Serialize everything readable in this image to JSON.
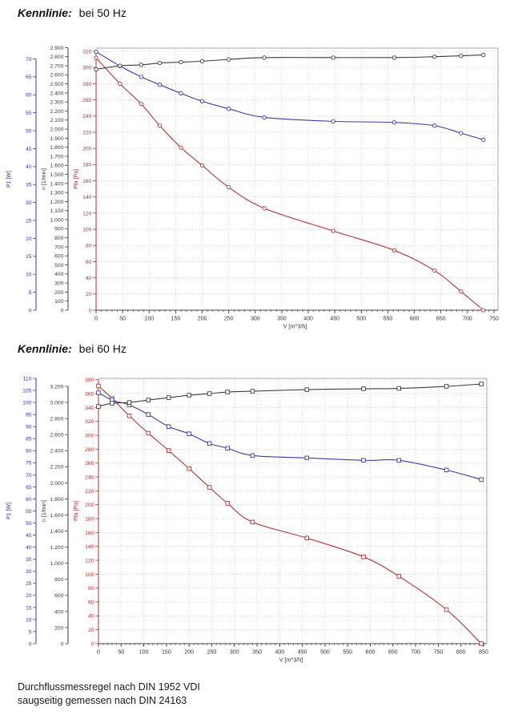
{
  "footer": {
    "lines": [
      "Durchflussmessregel nach DIN 1952 VDI",
      "saugseitig gemessen nach DIN 24163"
    ]
  },
  "colors": {
    "p1_blue": "#3a3aae",
    "n_black": "#3c3c3c",
    "pfa_red": "#b43232",
    "grid_vertical": "#cfcfcf",
    "grid_horizontal": "#dcc0c0",
    "plot_border": "#a8a8a8",
    "x_axis_line": "#444444",
    "x_tick_text": "#333333"
  },
  "chart_data": [
    {
      "type": "line",
      "title": "Kennlinie: bei 50 Hz",
      "title_keyword": "Kennlinie:",
      "title_rest": "bei 50 Hz",
      "xlabel": "V [m^3/h]",
      "marker": "circle",
      "grid": true,
      "legend": "none",
      "x_axis": {
        "min": 0,
        "max": 750,
        "tick_step": 50,
        "minor_step": 10
      },
      "y_axes": [
        {
          "id": "p1",
          "label": "P1 [W]",
          "color": "#3a3aae",
          "plot_max": 73,
          "tick_step": 5,
          "tick_max": 70,
          "thousands_sep": false,
          "grid": false
        },
        {
          "id": "n",
          "label": "n [1/min]",
          "color": "#3c3c3c",
          "plot_max": 2895,
          "tick_step": 100,
          "tick_max": 2900,
          "thousands_sep": true,
          "grid": false
        },
        {
          "id": "pfa",
          "label": "Pfa [Pa]",
          "color": "#b43232",
          "plot_max": 324,
          "tick_step": 20,
          "tick_max": 320,
          "thousands_sep": false,
          "grid": true
        }
      ],
      "series": [
        {
          "name": "Pfa",
          "axis": "pfa",
          "color": "#b43232",
          "points": [
            [
              0,
              312
            ],
            [
              45,
              280
            ],
            [
              85,
              255
            ],
            [
              120,
              228
            ],
            [
              160,
              201
            ],
            [
              200,
              179
            ],
            [
              250,
              152
            ],
            [
              317,
              126
            ],
            [
              447,
              98
            ],
            [
              562,
              74
            ],
            [
              638,
              49
            ],
            [
              688,
              23
            ],
            [
              730,
              0
            ]
          ]
        },
        {
          "name": "P1",
          "axis": "p1",
          "color": "#3a3aae",
          "points": [
            [
              0,
              72
            ],
            [
              45,
              68
            ],
            [
              85,
              65
            ],
            [
              120,
              62.8
            ],
            [
              160,
              60.4
            ],
            [
              200,
              58.2
            ],
            [
              250,
              56.1
            ],
            [
              317,
              53.7
            ],
            [
              447,
              52.6
            ],
            [
              562,
              52.3
            ],
            [
              638,
              51.4
            ],
            [
              688,
              49.3
            ],
            [
              730,
              47.5
            ]
          ]
        },
        {
          "name": "n",
          "axis": "n",
          "color": "#3c3c3c",
          "points": [
            [
              0,
              2660
            ],
            [
              45,
              2700
            ],
            [
              85,
              2710
            ],
            [
              120,
              2730
            ],
            [
              160,
              2740
            ],
            [
              200,
              2750
            ],
            [
              250,
              2770
            ],
            [
              317,
              2790
            ],
            [
              447,
              2790
            ],
            [
              562,
              2790
            ],
            [
              638,
              2800
            ],
            [
              688,
              2810
            ],
            [
              730,
              2820
            ]
          ]
        }
      ]
    },
    {
      "type": "line",
      "title": "Kennlinie: bei 60 Hz",
      "title_keyword": "Kennlinie:",
      "title_rest": "bei 60 Hz",
      "xlabel": "V [m^3/h]",
      "marker": "square",
      "grid": true,
      "legend": "none",
      "x_axis": {
        "min": 0,
        "max": 850,
        "tick_step": 50,
        "minor_step": 10
      },
      "y_axes": [
        {
          "id": "p1",
          "label": "P1 [W]",
          "color": "#3a3aae",
          "plot_max": 110,
          "tick_step": 5,
          "tick_max": 110,
          "thousands_sep": false,
          "grid": false
        },
        {
          "id": "n",
          "label": "n [1/min]",
          "color": "#3c3c3c",
          "plot_max": 3300,
          "tick_step": 200,
          "tick_max": 3200,
          "thousands_sep": true,
          "grid": false
        },
        {
          "id": "pfa",
          "label": "Pfa [Pa]",
          "color": "#b43232",
          "plot_max": 382,
          "tick_step": 20,
          "tick_max": 380,
          "thousands_sep": false,
          "grid": true
        }
      ],
      "series": [
        {
          "name": "Pfa",
          "axis": "pfa",
          "color": "#b43232",
          "points": [
            [
              0,
              371
            ],
            [
              30,
              353
            ],
            [
              68,
              328
            ],
            [
              110,
              303
            ],
            [
              155,
              278
            ],
            [
              200,
              252
            ],
            [
              245,
              225
            ],
            [
              285,
              202
            ],
            [
              340,
              175
            ],
            [
              460,
              152
            ],
            [
              585,
              125
            ],
            [
              663,
              97
            ],
            [
              768,
              49
            ],
            [
              845,
              0
            ]
          ]
        },
        {
          "name": "P1",
          "axis": "p1",
          "color": "#3a3aae",
          "points": [
            [
              0,
              104
            ],
            [
              30,
              101
            ],
            [
              68,
              99
            ],
            [
              110,
              95
            ],
            [
              155,
              90
            ],
            [
              200,
              87
            ],
            [
              245,
              83
            ],
            [
              285,
              81
            ],
            [
              340,
              78
            ],
            [
              460,
              77
            ],
            [
              585,
              76
            ],
            [
              663,
              76
            ],
            [
              768,
              72
            ],
            [
              845,
              68
            ]
          ]
        },
        {
          "name": "n",
          "axis": "n",
          "color": "#3c3c3c",
          "points": [
            [
              0,
              2950
            ],
            [
              30,
              2990
            ],
            [
              68,
              3000
            ],
            [
              110,
              3030
            ],
            [
              155,
              3060
            ],
            [
              200,
              3090
            ],
            [
              245,
              3110
            ],
            [
              285,
              3130
            ],
            [
              340,
              3140
            ],
            [
              460,
              3160
            ],
            [
              585,
              3170
            ],
            [
              663,
              3175
            ],
            [
              768,
              3200
            ],
            [
              845,
              3230
            ]
          ]
        }
      ]
    }
  ]
}
